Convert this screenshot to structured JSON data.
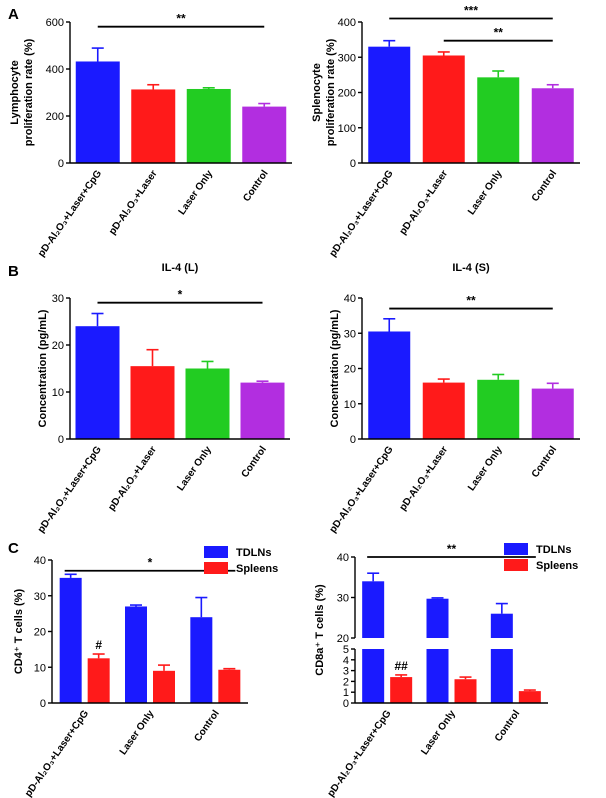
{
  "colors": {
    "blue": "#1a1aff",
    "red": "#ff1a1a",
    "green": "#22cc22",
    "purple": "#b22ee0"
  },
  "panel_letters": {
    "A": "A",
    "B": "B",
    "C": "C"
  },
  "chart_data": [
    {
      "id": "A-left",
      "type": "bar",
      "title": "",
      "ylabel": [
        "Lymphocyte",
        "proliferation rate (%)"
      ],
      "categories": [
        "pD-Al₂O₃+Laser+CpG",
        "pD-Al₂O₃+Laser",
        "Laser Only",
        "Control"
      ],
      "values": [
        432,
        313,
        315,
        240
      ],
      "errors": [
        57,
        20,
        5,
        13
      ],
      "colors": [
        "#1a1aff",
        "#ff1a1a",
        "#22cc22",
        "#b22ee0"
      ],
      "ylim": [
        0,
        600
      ],
      "yticks": [
        0,
        200,
        400,
        600
      ],
      "significance": [
        {
          "from": 0,
          "to": 3,
          "y": 580,
          "label": "**"
        }
      ]
    },
    {
      "id": "A-right",
      "type": "bar",
      "title": "",
      "ylabel": [
        "Splenocyte",
        "proliferation rate (%)"
      ],
      "categories": [
        "pD-Al₂O₃+Laser+CpG",
        "pD-Al₂O₃+Laser",
        "Laser Only",
        "Control"
      ],
      "values": [
        330,
        305,
        243,
        212
      ],
      "errors": [
        17,
        10,
        18,
        10
      ],
      "colors": [
        "#1a1aff",
        "#ff1a1a",
        "#22cc22",
        "#b22ee0"
      ],
      "ylim": [
        0,
        400
      ],
      "yticks": [
        0,
        100,
        200,
        300,
        400
      ],
      "significance": [
        {
          "from": 0,
          "to": 3,
          "y": 410,
          "label": "***"
        },
        {
          "from": 1,
          "to": 3,
          "y": 347,
          "label": "**"
        }
      ]
    },
    {
      "id": "B-left",
      "type": "bar",
      "title": "IL-4 (L)",
      "ylabel": [
        "Concentration (pg/mL)"
      ],
      "categories": [
        "pD-Al₂O₃+Laser+CpG",
        "pD-Al₂O₃+Laser",
        "Laser Only",
        "Control"
      ],
      "values": [
        24,
        15.5,
        15,
        12
      ],
      "errors": [
        2.7,
        3.5,
        1.5,
        0.3
      ],
      "colors": [
        "#1a1aff",
        "#ff1a1a",
        "#22cc22",
        "#b22ee0"
      ],
      "ylim": [
        0,
        30
      ],
      "yticks": [
        0,
        10,
        20,
        30
      ],
      "significance": [
        {
          "from": 0,
          "to": 3,
          "y": 29,
          "label": "*"
        }
      ]
    },
    {
      "id": "B-right",
      "type": "bar",
      "title": "IL-4 (S)",
      "ylabel": [
        "Concentration (pg/mL)"
      ],
      "categories": [
        "pD-Al₂O₃+Laser+CpG",
        "pD-Al₂O₃+Laser",
        "Laser Only",
        "Control"
      ],
      "values": [
        30.5,
        16,
        16.8,
        14.3
      ],
      "errors": [
        3.6,
        1,
        1.5,
        1.5
      ],
      "colors": [
        "#1a1aff",
        "#ff1a1a",
        "#22cc22",
        "#b22ee0"
      ],
      "ylim": [
        0,
        40
      ],
      "yticks": [
        0,
        10,
        20,
        30,
        40
      ],
      "significance": [
        {
          "from": 0,
          "to": 3,
          "y": 37,
          "label": "**"
        }
      ]
    },
    {
      "id": "C-left",
      "type": "bar",
      "title": "",
      "ylabel": [
        "CD4⁺ T cells (%)"
      ],
      "categories": [
        "pD-Al₂O₃+Laser+CpG",
        "Laser Only",
        "Control"
      ],
      "series": [
        {
          "name": "TDLNs",
          "color": "#1a1aff",
          "values": [
            35,
            27,
            24
          ],
          "errors": [
            1,
            0.4,
            5.5
          ]
        },
        {
          "name": "Spleens",
          "color": "#ff1a1a",
          "values": [
            12.5,
            9,
            9.3
          ],
          "errors": [
            1.2,
            1.6,
            0.3
          ]
        }
      ],
      "ylim": [
        0,
        40
      ],
      "yticks": [
        0,
        10,
        20,
        30,
        40
      ],
      "legend": "top-right",
      "significance": [
        {
          "from": 0,
          "to": 2,
          "y": 37,
          "label": "*"
        }
      ],
      "annotations": [
        {
          "group": 0,
          "series": 1,
          "label": "#"
        }
      ]
    },
    {
      "id": "C-right",
      "type": "bar",
      "title": "",
      "ylabel": [
        "CD8a⁺ T cells (%)"
      ],
      "categories": [
        "pD-Al₂O₃+Laser+CpG",
        "Laser Only",
        "Control"
      ],
      "series": [
        {
          "name": "TDLNs",
          "color": "#1a1aff",
          "values": [
            34,
            29.7,
            26
          ],
          "errors": [
            2,
            0.2,
            2.5
          ]
        },
        {
          "name": "Spleens",
          "color": "#ff1a1a",
          "values": [
            2.4,
            2.2,
            1.1
          ],
          "errors": [
            0.2,
            0.2,
            0.1
          ]
        }
      ],
      "broken_axis": {
        "lower_range": [
          0,
          5
        ],
        "upper_range": [
          20,
          40
        ]
      },
      "yticks_lower": [
        0,
        1,
        2,
        3,
        4,
        5
      ],
      "yticks_upper": [
        20,
        30,
        40
      ],
      "legend": "top-right",
      "significance": [
        {
          "from": 0,
          "to": 2,
          "y": 40,
          "label": "**"
        }
      ],
      "annotations": [
        {
          "group": 0,
          "series": 1,
          "label": "##"
        }
      ]
    }
  ]
}
